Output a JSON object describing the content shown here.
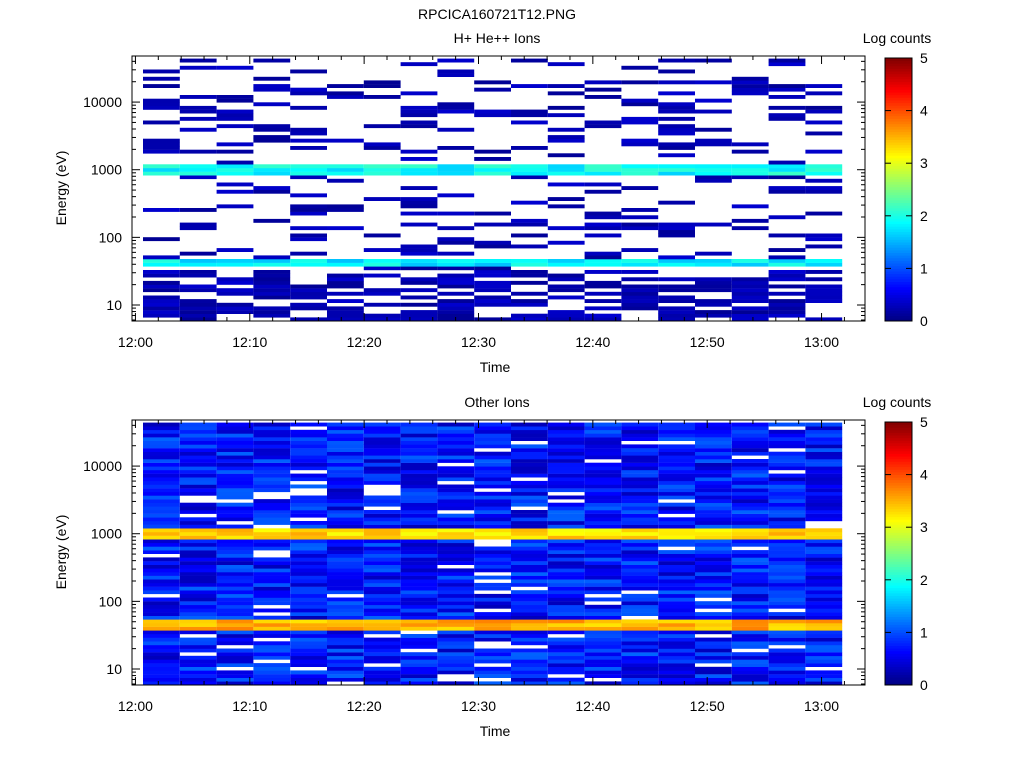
{
  "figure": {
    "title": "RPCICA160721T12.PNG"
  },
  "chart_data": [
    {
      "type": "heatmap",
      "title": "H+ He++ Ions",
      "xlabel": "Time",
      "ylabel": "Energy (eV)",
      "x_ticks": [
        "12:00",
        "12:10",
        "12:20",
        "12:30",
        "12:40",
        "12:50",
        "13:00"
      ],
      "y_ticks": [
        "10",
        "100",
        "1000",
        "10000"
      ],
      "y_scale": "log",
      "colorbar": {
        "label": "Log counts",
        "ticks": [
          "0",
          "1",
          "2",
          "3",
          "4",
          "5"
        ],
        "range": [
          0,
          5
        ]
      },
      "columns": 19,
      "bands": [
        {
          "energy_lo": 780,
          "energy_hi": 1150,
          "value": 1.9
        },
        {
          "energy_lo": 38,
          "energy_hi": 50,
          "value": 1.8
        }
      ],
      "sparse_fill": 0.28,
      "sparse_level": 0.25
    },
    {
      "type": "heatmap",
      "title": "Other Ions",
      "xlabel": "Time",
      "ylabel": "Energy (eV)",
      "x_ticks": [
        "12:00",
        "12:10",
        "12:20",
        "12:30",
        "12:40",
        "12:50",
        "13:00"
      ],
      "y_ticks": [
        "10",
        "100",
        "1000",
        "10000"
      ],
      "y_scale": "log",
      "colorbar": {
        "label": "Log counts",
        "ticks": [
          "0",
          "1",
          "2",
          "3",
          "4",
          "5"
        ],
        "range": [
          0,
          5
        ]
      },
      "columns": 19,
      "bands": [
        {
          "energy_lo": 800,
          "energy_hi": 1150,
          "value": 3.3
        },
        {
          "energy_lo": 36,
          "energy_hi": 52,
          "value": 3.5
        }
      ],
      "sparse_fill": 0.93,
      "sparse_level": 0.7
    }
  ]
}
